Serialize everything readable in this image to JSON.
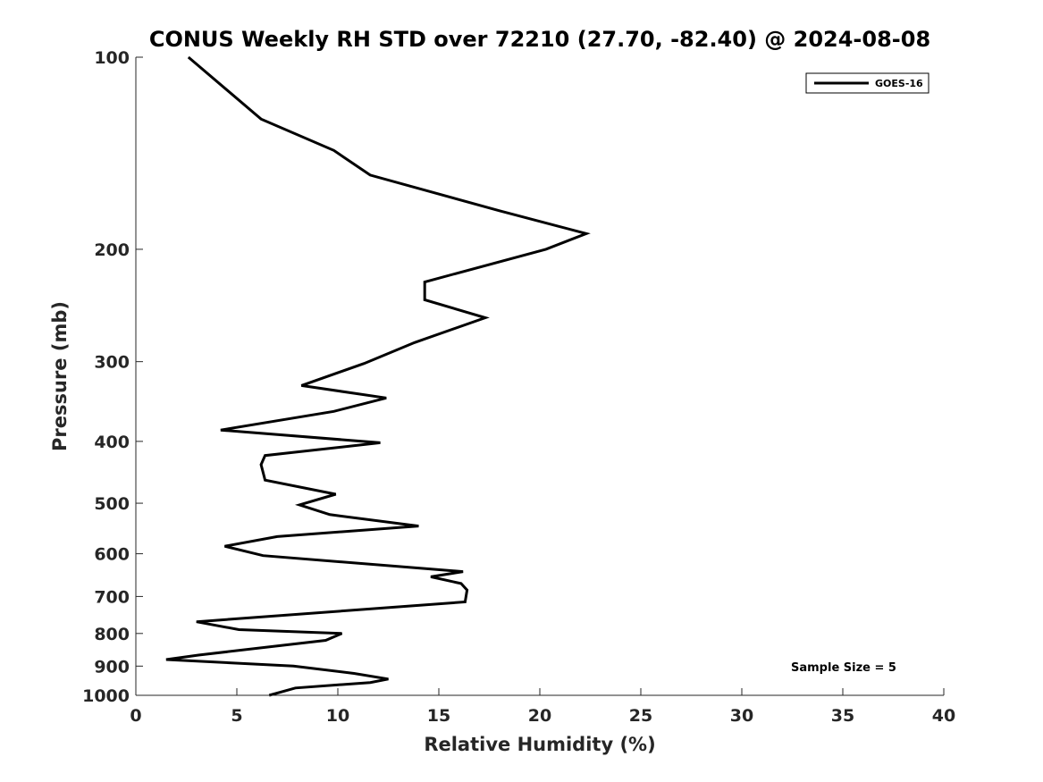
{
  "chart_data": {
    "type": "line",
    "title": "CONUS Weekly RH STD over 72210 (27.70, -82.40) @ 2024-08-08",
    "xlabel": "Relative Humidity (%)",
    "ylabel": "Pressure (mb)",
    "xlim": [
      0,
      40
    ],
    "ylim": [
      100,
      1000
    ],
    "y_scale": "log",
    "y_reversed": true,
    "x_ticks": [
      0,
      5,
      10,
      15,
      20,
      25,
      30,
      35,
      40
    ],
    "y_ticks": [
      100,
      200,
      300,
      400,
      500,
      600,
      700,
      800,
      900,
      1000
    ],
    "grid": false,
    "legend_position": "top-right",
    "annotation": "Sample Size = 5",
    "series": [
      {
        "name": "GOES-16",
        "color": "#000000",
        "points": [
          [
            2.6,
            100
          ],
          [
            6.2,
            125
          ],
          [
            9.8,
            140
          ],
          [
            11.6,
            153
          ],
          [
            18.0,
            174
          ],
          [
            22.3,
            189
          ],
          [
            20.3,
            200
          ],
          [
            14.3,
            225
          ],
          [
            14.3,
            240
          ],
          [
            17.3,
            256
          ],
          [
            13.8,
            280
          ],
          [
            11.3,
            302
          ],
          [
            8.2,
            327
          ],
          [
            12.4,
            342
          ],
          [
            9.8,
            359
          ],
          [
            4.2,
            384
          ],
          [
            12.1,
            402
          ],
          [
            6.4,
            421
          ],
          [
            6.2,
            435
          ],
          [
            6.4,
            460
          ],
          [
            9.9,
            484
          ],
          [
            8.1,
            503
          ],
          [
            9.6,
            521
          ],
          [
            14.0,
            543
          ],
          [
            7.0,
            564
          ],
          [
            4.4,
            584
          ],
          [
            6.3,
            604
          ],
          [
            16.2,
            640
          ],
          [
            14.6,
            652
          ],
          [
            16.1,
            668
          ],
          [
            16.4,
            684
          ],
          [
            16.3,
            714
          ],
          [
            3.0,
            767
          ],
          [
            5.1,
            789
          ],
          [
            10.2,
            800
          ],
          [
            9.4,
            820
          ],
          [
            3.1,
            865
          ],
          [
            1.5,
            879
          ],
          [
            7.8,
            900
          ],
          [
            10.8,
            924
          ],
          [
            12.5,
            943
          ],
          [
            11.6,
            955
          ],
          [
            7.9,
            974
          ],
          [
            6.6,
            1000
          ]
        ]
      }
    ]
  }
}
